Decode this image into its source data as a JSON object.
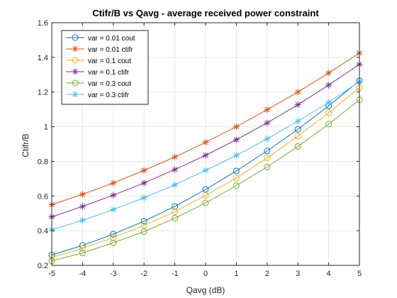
{
  "chart_data": {
    "type": "line",
    "title": "Ctifr/B vs Qavg - average received power constraint",
    "xlabel": "Qavg (dB)",
    "ylabel": "Ctifr/B",
    "xlim": [
      -5,
      5
    ],
    "ylim": [
      0.2,
      1.6
    ],
    "xticks": [
      -5,
      -4,
      -3,
      -2,
      -1,
      0,
      1,
      2,
      3,
      4,
      5
    ],
    "yticks": [
      0.2,
      0.4,
      0.6,
      0.8,
      1,
      1.2,
      1.4,
      1.6
    ],
    "xtick_labels": [
      "-5",
      "-4",
      "-3",
      "-2",
      "-1",
      "0",
      "1",
      "2",
      "3",
      "4",
      "5"
    ],
    "ytick_labels": [
      "0.2",
      "0.4",
      "0.6",
      "0.8",
      "1",
      "1.2",
      "1.4",
      "1.6"
    ],
    "grid": true,
    "legend_position": "top-left",
    "x": [
      -5,
      -4,
      -3,
      -2,
      -1,
      0,
      1,
      2,
      3,
      4,
      5
    ],
    "series": [
      {
        "name": "var = 0.01 cout",
        "marker": "circle",
        "color": "#0072BD",
        "values": [
          0.26,
          0.315,
          0.38,
          0.455,
          0.54,
          0.638,
          0.745,
          0.86,
          0.985,
          1.12,
          1.265
        ]
      },
      {
        "name": "var = 0.01 ctifr",
        "marker": "asterisk",
        "color": "#D95319",
        "values": [
          0.55,
          0.61,
          0.675,
          0.748,
          0.825,
          0.91,
          1.0,
          1.098,
          1.2,
          1.31,
          1.425
        ]
      },
      {
        "name": "var = 0.1 cout",
        "marker": "circle",
        "color": "#EDB120",
        "values": [
          0.245,
          0.298,
          0.36,
          0.43,
          0.51,
          0.603,
          0.705,
          0.82,
          0.945,
          1.08,
          1.225
        ]
      },
      {
        "name": "var = 0.1 ctifr",
        "marker": "asterisk",
        "color": "#7E2F8E",
        "values": [
          0.48,
          0.54,
          0.605,
          0.675,
          0.753,
          0.835,
          0.925,
          1.022,
          1.127,
          1.24,
          1.36
        ]
      },
      {
        "name": "var = 0.3 cout",
        "marker": "circle",
        "color": "#77AC30",
        "values": [
          0.225,
          0.272,
          0.33,
          0.395,
          0.472,
          0.56,
          0.66,
          0.768,
          0.886,
          1.015,
          1.155
        ]
      },
      {
        "name": "var = 0.3 ctifr",
        "marker": "asterisk",
        "color": "#4DBEEE",
        "values": [
          0.405,
          0.46,
          0.522,
          0.59,
          0.665,
          0.748,
          0.835,
          0.93,
          1.032,
          1.14,
          1.26
        ]
      }
    ]
  }
}
